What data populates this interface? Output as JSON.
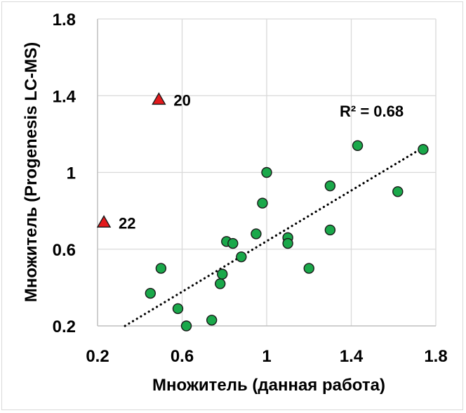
{
  "chart_data": {
    "type": "scatter",
    "xlabel": "Множитель (данная работа)",
    "ylabel": "Множитель (Progenesis LC-MS)",
    "xlim": [
      0.2,
      1.8
    ],
    "ylim": [
      0.2,
      1.8
    ],
    "xticks": [
      "0.2",
      "0.6",
      "1",
      "1.4",
      "1.8"
    ],
    "yticks": [
      "0.2",
      "0.6",
      "1",
      "1.4",
      "1.8"
    ],
    "grid": true,
    "series": [
      {
        "marker": "circle",
        "color": "#1aa84a",
        "points": [
          [
            0.45,
            0.37
          ],
          [
            0.5,
            0.5
          ],
          [
            0.58,
            0.29
          ],
          [
            0.62,
            0.2
          ],
          [
            0.74,
            0.23
          ],
          [
            0.78,
            0.42
          ],
          [
            0.79,
            0.47
          ],
          [
            0.81,
            0.64
          ],
          [
            0.84,
            0.63
          ],
          [
            0.88,
            0.56
          ],
          [
            0.95,
            0.68
          ],
          [
            0.98,
            0.84
          ],
          [
            1.0,
            1.0
          ],
          [
            1.1,
            0.66
          ],
          [
            1.1,
            0.63
          ],
          [
            1.2,
            0.5
          ],
          [
            1.3,
            0.93
          ],
          [
            1.3,
            0.7
          ],
          [
            1.43,
            1.14
          ],
          [
            1.62,
            0.9
          ],
          [
            1.74,
            1.12
          ]
        ]
      },
      {
        "marker": "triangle",
        "color": "#e31a1c",
        "points": [
          {
            "x": 0.49,
            "y": 1.38,
            "label": "20"
          },
          {
            "x": 0.23,
            "y": 0.74,
            "label": "22"
          }
        ]
      }
    ],
    "trendline": {
      "style": "dotted",
      "from": [
        0.33,
        0.2
      ],
      "to": [
        1.74,
        1.13
      ],
      "label": "R² = 0.68"
    }
  }
}
